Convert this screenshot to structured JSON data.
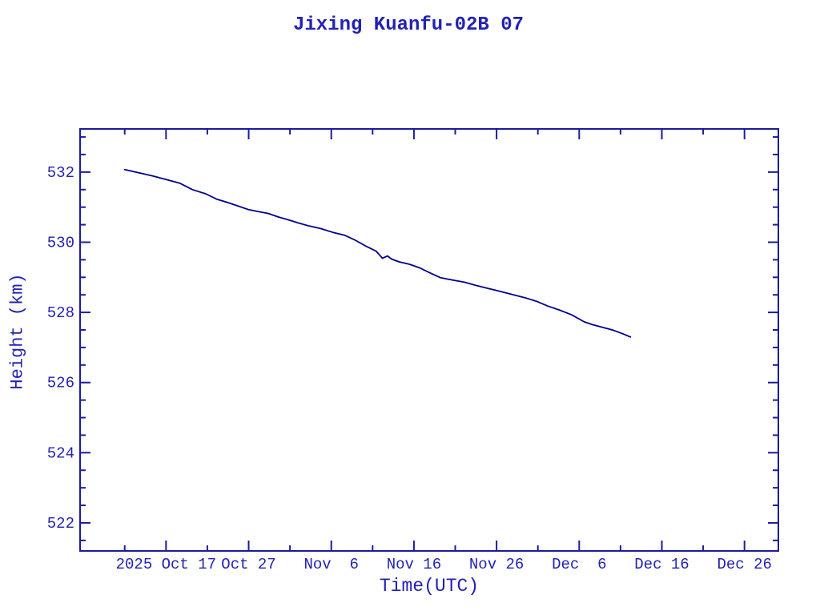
{
  "window": {
    "background": "#ffffff"
  },
  "colors": {
    "text": "#2222b2",
    "axis": "#1b1b9e",
    "line": "#00008b"
  },
  "chart_data": {
    "type": "line",
    "title": "Jixing Kuanfu-02B 07",
    "xlabel": "Time(UTC)",
    "ylabel": "Height (km)",
    "x_unit": "days relative to 2025 Oct 17 00:00 UTC",
    "y_unit": "km",
    "grid": false,
    "legend": false,
    "xlim": [
      -10.4,
      74.1
    ],
    "ylim": [
      521.2,
      533.23
    ],
    "x_major_ticks": [
      {
        "d": 0,
        "label": "2025 Oct 17"
      },
      {
        "d": 10,
        "label": "Oct 27"
      },
      {
        "d": 20,
        "label": "Nov  6"
      },
      {
        "d": 30,
        "label": "Nov 16"
      },
      {
        "d": 40,
        "label": "Nov 26"
      },
      {
        "d": 50,
        "label": "Dec  6"
      },
      {
        "d": 60,
        "label": "Dec 16"
      },
      {
        "d": 70,
        "label": "Dec 26"
      }
    ],
    "x_minor_ticks": [
      -5,
      5,
      15,
      25,
      35,
      45,
      55,
      65
    ],
    "y_major_ticks": [
      522,
      524,
      526,
      528,
      530,
      532
    ],
    "y_minor_step": 0.5,
    "series": [
      {
        "name": "orbital-height",
        "color": "#00008b",
        "points": [
          [
            -5.0,
            532.07
          ],
          [
            -3.3,
            531.98
          ],
          [
            -1.6,
            531.89
          ],
          [
            0.0,
            531.79
          ],
          [
            1.7,
            531.68
          ],
          [
            3.2,
            531.5
          ],
          [
            4.8,
            531.38
          ],
          [
            6.1,
            531.23
          ],
          [
            7.5,
            531.13
          ],
          [
            8.5,
            531.05
          ],
          [
            10.0,
            530.93
          ],
          [
            11.0,
            530.88
          ],
          [
            12.4,
            530.82
          ],
          [
            13.6,
            530.72
          ],
          [
            14.8,
            530.64
          ],
          [
            16.0,
            530.55
          ],
          [
            17.2,
            530.47
          ],
          [
            18.7,
            530.39
          ],
          [
            20.2,
            530.28
          ],
          [
            21.6,
            530.2
          ],
          [
            22.8,
            530.07
          ],
          [
            24.1,
            529.9
          ],
          [
            25.4,
            529.75
          ],
          [
            25.9,
            529.62
          ],
          [
            26.2,
            529.54
          ],
          [
            26.8,
            529.61
          ],
          [
            27.3,
            529.52
          ],
          [
            28.2,
            529.44
          ],
          [
            29.5,
            529.37
          ],
          [
            30.7,
            529.27
          ],
          [
            31.9,
            529.13
          ],
          [
            33.2,
            528.99
          ],
          [
            34.7,
            528.92
          ],
          [
            36.1,
            528.86
          ],
          [
            37.5,
            528.77
          ],
          [
            39.0,
            528.68
          ],
          [
            40.4,
            528.6
          ],
          [
            41.9,
            528.51
          ],
          [
            43.4,
            528.42
          ],
          [
            44.8,
            528.32
          ],
          [
            46.2,
            528.18
          ],
          [
            47.7,
            528.06
          ],
          [
            49.1,
            527.93
          ],
          [
            50.6,
            527.73
          ],
          [
            51.6,
            527.65
          ],
          [
            52.6,
            527.59
          ],
          [
            54.0,
            527.5
          ],
          [
            54.5,
            527.46
          ],
          [
            55.4,
            527.38
          ],
          [
            56.2,
            527.3
          ]
        ]
      }
    ]
  }
}
